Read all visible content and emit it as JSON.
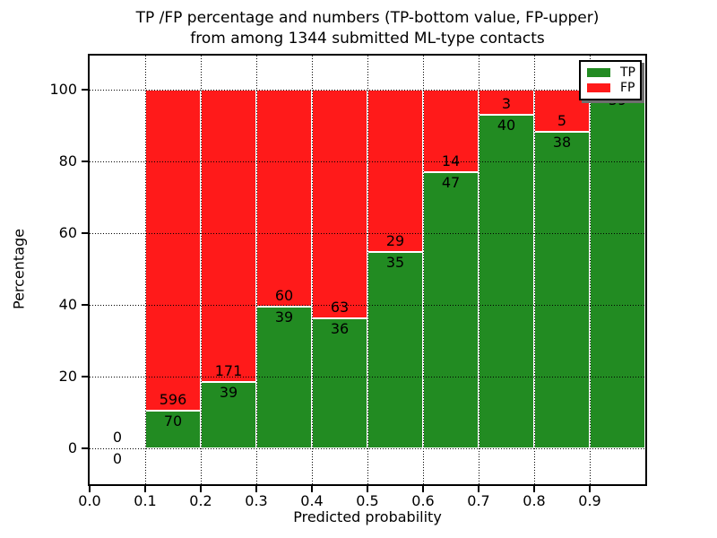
{
  "title": {
    "line1": "TP /FP percentage and numbers (TP-bottom value, FP-upper)",
    "line2": "from among 1344 submitted ML-type contacts"
  },
  "chart_data": {
    "type": "bar",
    "subtype": "stacked_percentage_histogram",
    "title": "TP /FP percentage and numbers (TP-bottom value, FP-upper)\nfrom among 1344 submitted ML-type contacts",
    "xlabel": "Predicted probability",
    "ylabel": "Percentage",
    "total_contacts": 1344,
    "xlim": [
      0.0,
      1.0
    ],
    "ylim": [
      -10,
      109.5
    ],
    "bin_width": 0.1,
    "categories": [
      "0.0-0.1",
      "0.1-0.2",
      "0.2-0.3",
      "0.3-0.4",
      "0.4-0.5",
      "0.5-0.6",
      "0.6-0.7",
      "0.7-0.8",
      "0.8-0.9",
      "0.9-1.0"
    ],
    "bin_starts": [
      0.0,
      0.1,
      0.2,
      0.3,
      0.4,
      0.5,
      0.6,
      0.7,
      0.8,
      0.9
    ],
    "series": [
      {
        "name": "TP",
        "color": "#228b22",
        "values": [
          0,
          70,
          39,
          39,
          36,
          35,
          47,
          40,
          38,
          59
        ]
      },
      {
        "name": "FP",
        "color": "#ff1a1a",
        "values": [
          0,
          596,
          171,
          60,
          63,
          29,
          14,
          3,
          5,
          0
        ]
      }
    ],
    "tp_percent": [
      0,
      10.51,
      18.57,
      39.39,
      36.36,
      54.69,
      77.05,
      93.02,
      88.37,
      100
    ],
    "xtick_values": [
      0.0,
      0.1,
      0.2,
      0.3,
      0.4,
      0.5,
      0.6,
      0.7,
      0.8,
      0.9
    ],
    "xtick_labels": [
      "0.0",
      "0.1",
      "0.2",
      "0.3",
      "0.4",
      "0.5",
      "0.6",
      "0.7",
      "0.8",
      "0.9"
    ],
    "ytick_values": [
      0,
      20,
      40,
      60,
      80,
      100
    ],
    "ytick_labels": [
      "0",
      "20",
      "40",
      "60",
      "80",
      "100"
    ],
    "grid": true,
    "grid_style": "dotted",
    "bar_edge_color": "#ffffff",
    "legend": {
      "position": "upper right",
      "entries": [
        {
          "label": "TP",
          "color": "#228b22"
        },
        {
          "label": "FP",
          "color": "#ff1a1a"
        }
      ]
    }
  }
}
